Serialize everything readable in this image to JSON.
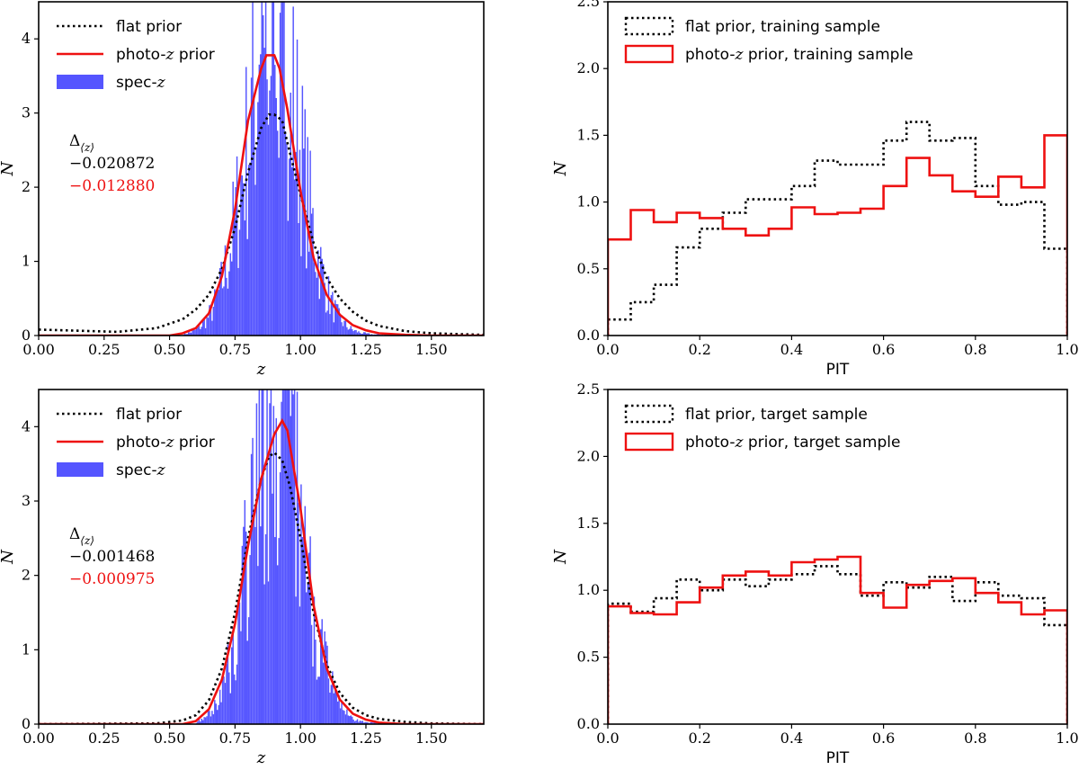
{
  "chart_data": [
    {
      "type": "histogram+line",
      "panel": "top-left",
      "xlabel": "z",
      "ylabel": "N",
      "xlim": [
        0.0,
        1.7
      ],
      "ylim": [
        0.0,
        4.5
      ],
      "xticks": [
        "0.00",
        "0.25",
        "0.50",
        "0.75",
        "1.00",
        "1.25",
        "1.50"
      ],
      "yticks": [
        "0",
        "1",
        "2",
        "3",
        "4"
      ],
      "legend": [
        {
          "label": "flat prior",
          "style": "dotted",
          "color": "#000000"
        },
        {
          "label": "photo-",
          "italic": "z",
          "suffix": " prior",
          "style": "solid",
          "color": "#ee1111"
        },
        {
          "label": "spec-",
          "italic": "z",
          "suffix": "",
          "style": "fill",
          "color": "#5555ff"
        }
      ],
      "annotation": {
        "delta_label": "Δ",
        "delta_sub": "⟨z⟩",
        "flat_value": "−0.020872",
        "photo_value": "−0.012880"
      },
      "series": [
        {
          "name": "flat prior",
          "x": [
            0.0,
            0.3,
            0.45,
            0.55,
            0.6,
            0.65,
            0.7,
            0.75,
            0.8,
            0.85,
            0.88,
            0.9,
            0.93,
            0.95,
            1.0,
            1.05,
            1.1,
            1.15,
            1.2,
            1.25,
            1.3,
            1.4,
            1.5,
            1.6,
            1.7
          ],
          "y": [
            0.08,
            0.05,
            0.1,
            0.22,
            0.35,
            0.55,
            0.9,
            1.45,
            2.2,
            2.8,
            2.98,
            2.98,
            2.9,
            2.6,
            1.9,
            1.25,
            0.78,
            0.5,
            0.32,
            0.2,
            0.13,
            0.06,
            0.03,
            0.02,
            0.01
          ]
        },
        {
          "name": "photo-z prior",
          "x": [
            0.0,
            0.5,
            0.55,
            0.6,
            0.65,
            0.7,
            0.75,
            0.8,
            0.85,
            0.87,
            0.9,
            0.92,
            0.95,
            1.0,
            1.05,
            1.1,
            1.15,
            1.2,
            1.25,
            1.3,
            1.4,
            1.5,
            1.7
          ],
          "y": [
            0.0,
            0.0,
            0.03,
            0.1,
            0.3,
            0.8,
            1.7,
            2.9,
            3.6,
            3.78,
            3.78,
            3.6,
            3.05,
            1.95,
            1.05,
            0.55,
            0.28,
            0.14,
            0.07,
            0.03,
            0.01,
            0.0,
            0.0
          ]
        }
      ],
      "spec_z_histogram": {
        "mu": 0.895,
        "sigma": 0.105,
        "peak": 3.9,
        "bins_from": 0.55,
        "bins_to": 1.6,
        "bin_width": 0.005
      }
    },
    {
      "type": "step",
      "panel": "top-right",
      "xlabel": "PIT",
      "ylabel": "N",
      "xlim": [
        0.0,
        1.0
      ],
      "ylim": [
        0.0,
        2.5
      ],
      "xticks": [
        "0.0",
        "0.2",
        "0.4",
        "0.6",
        "0.8",
        "1.0"
      ],
      "yticks": [
        "0.0",
        "0.5",
        "1.0",
        "1.5",
        "2.0",
        "2.5"
      ],
      "legend": [
        {
          "label": "flat prior, training sample",
          "style": "dotted",
          "color": "#000000"
        },
        {
          "label": "photo-",
          "italic": "z",
          "suffix": " prior, training sample",
          "style": "solid",
          "color": "#ee1111"
        }
      ],
      "bin_edges": [
        0.0,
        0.05,
        0.1,
        0.15,
        0.2,
        0.25,
        0.3,
        0.35,
        0.4,
        0.45,
        0.5,
        0.55,
        0.6,
        0.65,
        0.7,
        0.75,
        0.8,
        0.85,
        0.9,
        0.95,
        1.0
      ],
      "series": [
        {
          "name": "flat prior, training sample",
          "values": [
            0.12,
            0.25,
            0.38,
            0.66,
            0.8,
            0.92,
            1.02,
            1.02,
            1.12,
            1.31,
            1.28,
            1.28,
            1.46,
            1.6,
            1.46,
            1.48,
            1.12,
            0.98,
            1.0,
            0.65
          ]
        },
        {
          "name": "photo-z prior, training sample",
          "values": [
            0.72,
            0.94,
            0.85,
            0.92,
            0.88,
            0.8,
            0.75,
            0.8,
            0.96,
            0.91,
            0.92,
            0.95,
            1.12,
            1.33,
            1.2,
            1.08,
            1.04,
            1.19,
            1.11,
            1.5
          ]
        }
      ]
    },
    {
      "type": "histogram+line",
      "panel": "bottom-left",
      "xlabel": "z",
      "ylabel": "N",
      "xlim": [
        0.0,
        1.7
      ],
      "ylim": [
        0.0,
        4.5
      ],
      "xticks": [
        "0.00",
        "0.25",
        "0.50",
        "0.75",
        "1.00",
        "1.25",
        "1.50"
      ],
      "yticks": [
        "0",
        "1",
        "2",
        "3",
        "4"
      ],
      "legend": [
        {
          "label": "flat prior",
          "style": "dotted",
          "color": "#000000"
        },
        {
          "label": "photo-",
          "italic": "z",
          "suffix": " prior",
          "style": "solid",
          "color": "#ee1111"
        },
        {
          "label": "spec-",
          "italic": "z",
          "suffix": "",
          "style": "fill",
          "color": "#5555ff"
        }
      ],
      "annotation": {
        "delta_label": "Δ",
        "delta_sub": "⟨z⟩",
        "flat_value": "−0.001468",
        "photo_value": "−0.000975"
      },
      "series": [
        {
          "name": "flat prior",
          "x": [
            0.0,
            0.45,
            0.55,
            0.6,
            0.65,
            0.7,
            0.75,
            0.8,
            0.85,
            0.88,
            0.9,
            0.93,
            0.96,
            1.0,
            1.05,
            1.1,
            1.15,
            1.2,
            1.25,
            1.3,
            1.4,
            1.5,
            1.7
          ],
          "y": [
            0.0,
            0.01,
            0.05,
            0.12,
            0.32,
            0.75,
            1.5,
            2.5,
            3.3,
            3.6,
            3.65,
            3.55,
            3.2,
            2.5,
            1.5,
            0.8,
            0.42,
            0.22,
            0.12,
            0.07,
            0.03,
            0.01,
            0.0
          ]
        },
        {
          "name": "photo-z prior",
          "x": [
            0.0,
            0.55,
            0.6,
            0.65,
            0.7,
            0.75,
            0.8,
            0.85,
            0.9,
            0.93,
            0.95,
            1.0,
            1.05,
            1.1,
            1.15,
            1.2,
            1.25,
            1.3,
            1.4,
            1.7
          ],
          "y": [
            0.0,
            0.0,
            0.04,
            0.2,
            0.6,
            1.35,
            2.4,
            3.3,
            3.9,
            4.08,
            3.95,
            2.9,
            1.6,
            0.75,
            0.33,
            0.14,
            0.06,
            0.02,
            0.0,
            0.0
          ]
        }
      ],
      "spec_z_histogram": {
        "mu": 0.91,
        "sigma": 0.1,
        "peak": 4.1,
        "bins_from": 0.6,
        "bins_to": 1.6,
        "bin_width": 0.005
      }
    },
    {
      "type": "step",
      "panel": "bottom-right",
      "xlabel": "PIT",
      "ylabel": "N",
      "xlim": [
        0.0,
        1.0
      ],
      "ylim": [
        0.0,
        2.5
      ],
      "xticks": [
        "0.0",
        "0.2",
        "0.4",
        "0.6",
        "0.8",
        "1.0"
      ],
      "yticks": [
        "0.0",
        "0.5",
        "1.0",
        "1.5",
        "2.0",
        "2.5"
      ],
      "legend": [
        {
          "label": "flat prior, target sample",
          "style": "dotted",
          "color": "#000000"
        },
        {
          "label": "photo-",
          "italic": "z",
          "suffix": " prior, target sample",
          "style": "solid",
          "color": "#ee1111"
        }
      ],
      "bin_edges": [
        0.0,
        0.05,
        0.1,
        0.15,
        0.2,
        0.25,
        0.3,
        0.35,
        0.4,
        0.45,
        0.5,
        0.55,
        0.6,
        0.65,
        0.7,
        0.75,
        0.8,
        0.85,
        0.9,
        0.95,
        1.0
      ],
      "series": [
        {
          "name": "flat prior, target sample",
          "values": [
            0.9,
            0.84,
            0.94,
            1.08,
            1.0,
            1.08,
            1.03,
            1.08,
            1.12,
            1.18,
            1.12,
            0.96,
            1.06,
            1.02,
            1.1,
            0.92,
            1.06,
            0.96,
            0.94,
            0.74
          ]
        },
        {
          "name": "photo-z prior, target sample",
          "values": [
            0.88,
            0.83,
            0.82,
            0.91,
            1.02,
            1.11,
            1.14,
            1.11,
            1.21,
            1.23,
            1.25,
            0.98,
            0.87,
            1.04,
            1.07,
            1.09,
            0.98,
            0.91,
            0.82,
            0.85
          ]
        }
      ]
    }
  ]
}
